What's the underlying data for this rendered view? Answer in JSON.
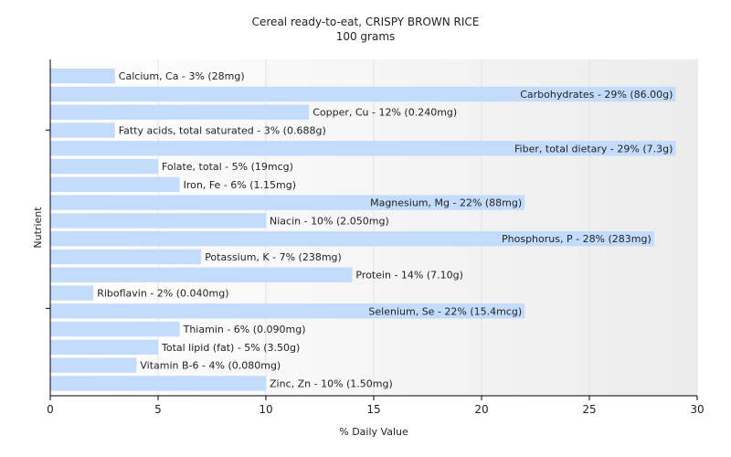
{
  "chart_data": {
    "type": "bar",
    "orientation": "horizontal",
    "title": "Cereal ready-to-eat, CRISPY BROWN RICE",
    "subtitle": "100 grams",
    "xlabel": "% Daily Value",
    "ylabel": "Nutrient",
    "xlim": [
      0,
      30
    ],
    "xticks": [
      0,
      5,
      10,
      15,
      20,
      25,
      30
    ],
    "grid": true,
    "bar_color": "#c4dcfc",
    "categories": [
      "Calcium, Ca",
      "Carbohydrates",
      "Copper, Cu",
      "Fatty acids, total saturated",
      "Fiber, total dietary",
      "Folate, total",
      "Iron, Fe",
      "Magnesium, Mg",
      "Niacin",
      "Phosphorus, P",
      "Potassium, K",
      "Protein",
      "Riboflavin",
      "Selenium, Se",
      "Thiamin",
      "Total lipid (fat)",
      "Vitamin B-6",
      "Zinc, Zn"
    ],
    "values": [
      3,
      29,
      12,
      3,
      29,
      5,
      6,
      22,
      10,
      28,
      7,
      14,
      2,
      22,
      6,
      5,
      4,
      10
    ],
    "labels": [
      "Calcium, Ca - 3% (28mg)",
      "Carbohydrates - 29% (86.00g)",
      "Copper, Cu - 12% (0.240mg)",
      "Fatty acids, total saturated - 3% (0.688g)",
      "Fiber, total dietary - 29% (7.3g)",
      "Folate, total - 5% (19mcg)",
      "Iron, Fe - 6% (1.15mg)",
      "Magnesium, Mg - 22% (88mg)",
      "Niacin - 10% (2.050mg)",
      "Phosphorus, P - 28% (283mg)",
      "Potassium, K - 7% (238mg)",
      "Protein - 14% (7.10g)",
      "Riboflavin - 2% (0.040mg)",
      "Selenium, Se - 22% (15.4mcg)",
      "Thiamin - 6% (0.090mg)",
      "Total lipid (fat) - 5% (3.50g)",
      "Vitamin B-6 - 4% (0.080mg)",
      "Zinc, Zn - 10% (1.50mg)"
    ]
  }
}
